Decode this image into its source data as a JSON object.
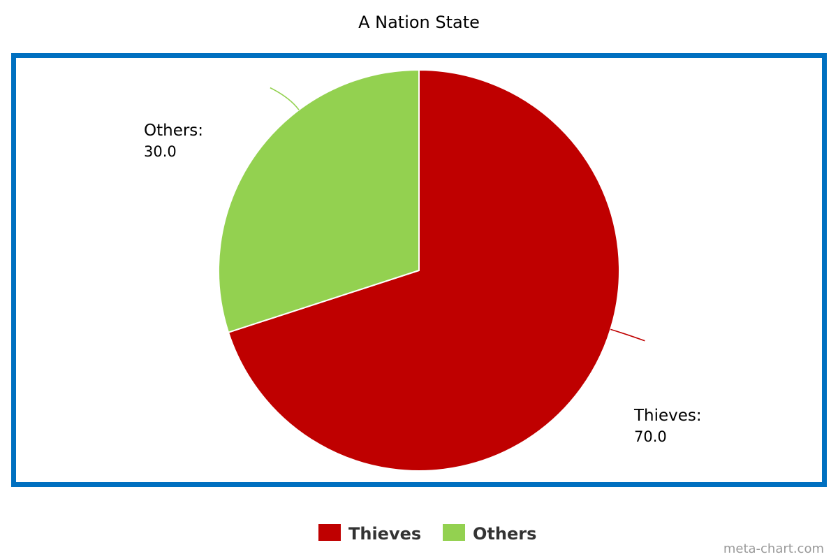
{
  "chart_data": {
    "type": "pie",
    "title": "A Nation State",
    "slices": [
      {
        "label": "Thieves",
        "display_label": "Thieves:",
        "display_value": "70.0",
        "value": 70.0,
        "color": "#bf0000"
      },
      {
        "label": "Others",
        "display_label": "Others:",
        "display_value": "30.0",
        "value": 30.0,
        "color": "#93d150"
      }
    ],
    "legend": {
      "placement": "bottom-center",
      "items": [
        "Thieves",
        "Others"
      ]
    },
    "frame_color": "#0070c0",
    "credit": "meta-chart.com"
  }
}
